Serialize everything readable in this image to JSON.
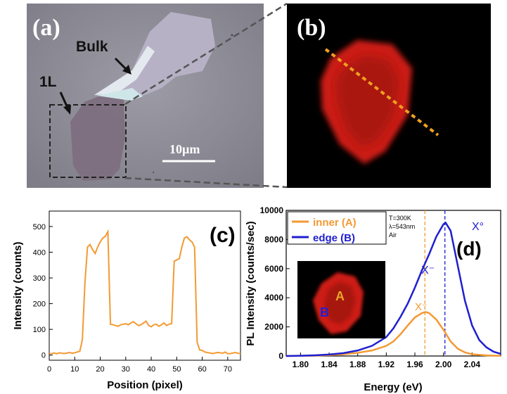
{
  "panel_a": {
    "letter": "(a)",
    "label_bulk": "Bulk",
    "label_1l": "1L",
    "scalebar_text": "10µm"
  },
  "panel_b": {
    "letter": "(b)"
  },
  "panel_c": {
    "letter": "(c)",
    "chart_data": {
      "type": "line",
      "xlabel": "Position (pixel)",
      "ylabel": "Intensity (counts)",
      "xlim": [
        0,
        75
      ],
      "ylim": [
        -20,
        560
      ],
      "xticks": [
        0,
        10,
        20,
        30,
        40,
        50,
        60,
        70
      ],
      "yticks": [
        0,
        100,
        200,
        300,
        400,
        500
      ],
      "color": "#f39a33",
      "x": [
        0,
        1,
        2,
        3,
        4,
        5,
        6,
        7,
        8,
        9,
        10,
        11,
        12,
        13,
        14,
        15,
        16,
        17,
        18,
        19,
        20,
        21,
        22,
        23,
        24,
        25,
        26,
        27,
        28,
        29,
        30,
        31,
        32,
        33,
        34,
        35,
        36,
        37,
        38,
        39,
        40,
        41,
        42,
        43,
        44,
        45,
        46,
        47,
        48,
        49,
        50,
        51,
        52,
        53,
        54,
        55,
        56,
        57,
        58,
        59,
        60,
        61,
        62,
        63,
        64,
        65,
        66,
        67,
        68,
        69,
        70,
        71,
        72,
        73,
        74,
        75
      ],
      "y": [
        5,
        6,
        8,
        5,
        9,
        7,
        6,
        8,
        10,
        7,
        9,
        12,
        15,
        60,
        280,
        420,
        430,
        410,
        395,
        420,
        440,
        455,
        462,
        480,
        120,
        118,
        115,
        112,
        118,
        120,
        122,
        118,
        125,
        130,
        122,
        115,
        118,
        125,
        132,
        115,
        110,
        118,
        120,
        112,
        118,
        125,
        115,
        120,
        122,
        365,
        370,
        375,
        420,
        455,
        460,
        448,
        440,
        420,
        50,
        20,
        18,
        12,
        10,
        8,
        6,
        8,
        10,
        9,
        7,
        12,
        5,
        6,
        8,
        10,
        7,
        6
      ]
    }
  },
  "panel_d": {
    "letter": "(d)",
    "chart_data": {
      "type": "line",
      "xlabel": "Energy (eV)",
      "ylabel": "PL Intensity (counts/sec)",
      "xlim": [
        1.78,
        2.08
      ],
      "ylim": [
        0,
        10000
      ],
      "xticks": [
        "1.80",
        "1.84",
        "1.88",
        "1.92",
        "1.96",
        "2.00",
        "2.04"
      ],
      "yticks": [
        0,
        2000,
        4000,
        6000,
        8000,
        10000
      ],
      "legend": [
        {
          "name": "inner (A)",
          "color": "#f39a33"
        },
        {
          "name": "edge  (B)",
          "color": "#1f1fd0"
        }
      ],
      "conditions": [
        "T=300K",
        "λ=543nm",
        "Air"
      ],
      "annotations": {
        "x0": "X°",
        "xminus_b": "X⁻",
        "xminus_a": "X⁻"
      },
      "inset_label_a": "A",
      "inset_label_b": "B",
      "vlines": [
        1.974,
        2.002
      ],
      "series": [
        {
          "name": "inner (A)",
          "color": "#f39a33",
          "x": [
            1.78,
            1.8,
            1.82,
            1.84,
            1.86,
            1.88,
            1.9,
            1.92,
            1.93,
            1.94,
            1.95,
            1.96,
            1.97,
            1.975,
            1.98,
            1.99,
            2.0,
            2.01,
            2.02,
            2.03,
            2.04,
            2.06,
            2.08
          ],
          "y": [
            0,
            10,
            30,
            60,
            120,
            220,
            380,
            700,
            1000,
            1500,
            2100,
            2650,
            2950,
            3020,
            2950,
            2500,
            1800,
            1000,
            500,
            250,
            120,
            40,
            10
          ]
        },
        {
          "name": "edge  (B)",
          "color": "#1f1fd0",
          "x": [
            1.78,
            1.8,
            1.82,
            1.84,
            1.86,
            1.88,
            1.9,
            1.92,
            1.93,
            1.94,
            1.95,
            1.96,
            1.97,
            1.98,
            1.99,
            2.0,
            2.003,
            2.01,
            2.02,
            2.03,
            2.04,
            2.05,
            2.06,
            2.07,
            2.08
          ],
          "y": [
            0,
            20,
            50,
            100,
            200,
            380,
            700,
            1300,
            1900,
            2700,
            3600,
            4700,
            5900,
            7000,
            8200,
            9050,
            9150,
            8600,
            6200,
            3800,
            2100,
            1100,
            600,
            300,
            150
          ]
        }
      ]
    }
  }
}
